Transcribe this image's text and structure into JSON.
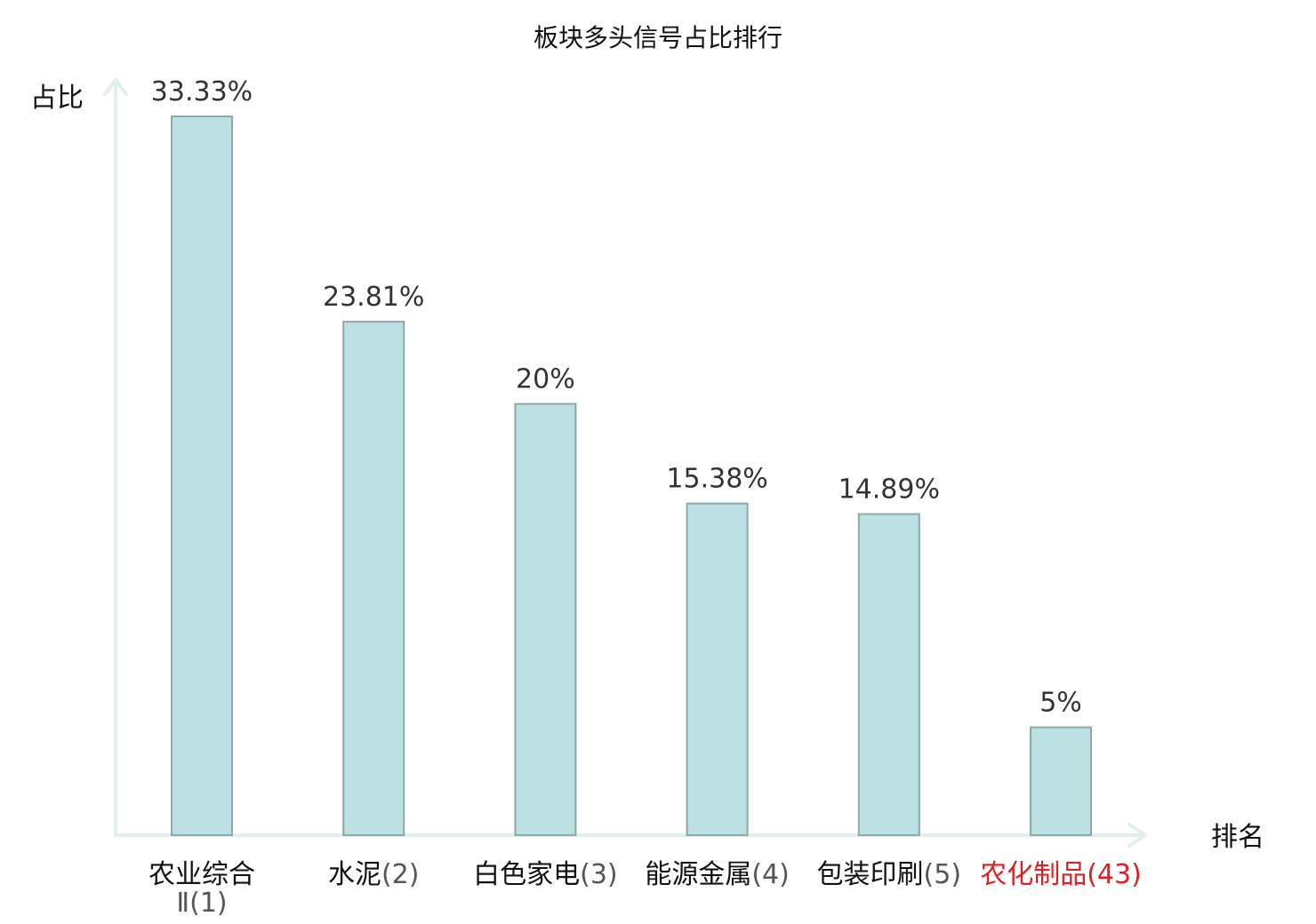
{
  "chart_data": {
    "type": "bar",
    "title": "板块多头信号占比排行",
    "ylabel": "占比",
    "xlabel": "排名",
    "ylim": [
      0,
      35
    ],
    "grid": false,
    "categories": [
      {
        "name": "农业综合",
        "rank": "Ⅱ(1)",
        "highlight": false
      },
      {
        "name": "水泥",
        "rank": "(2)",
        "highlight": false
      },
      {
        "name": "白色家电",
        "rank": "(3)",
        "highlight": false
      },
      {
        "name": "能源金属",
        "rank": "(4)",
        "highlight": false
      },
      {
        "name": "包装印刷",
        "rank": "(5)",
        "highlight": false
      },
      {
        "name": "农化制品",
        "rank": "(43)",
        "highlight": true
      }
    ],
    "values": [
      33.33,
      23.81,
      20,
      15.38,
      14.89,
      5
    ],
    "value_labels": [
      "33.33%",
      "23.81%",
      "20%",
      "15.38%",
      "14.89%",
      "5%"
    ],
    "colors": {
      "bar_fill": "#bde0e3",
      "bar_stroke": "#8aa9ab",
      "axis": "#dff0ee",
      "highlight_text": "#e02020"
    }
  }
}
